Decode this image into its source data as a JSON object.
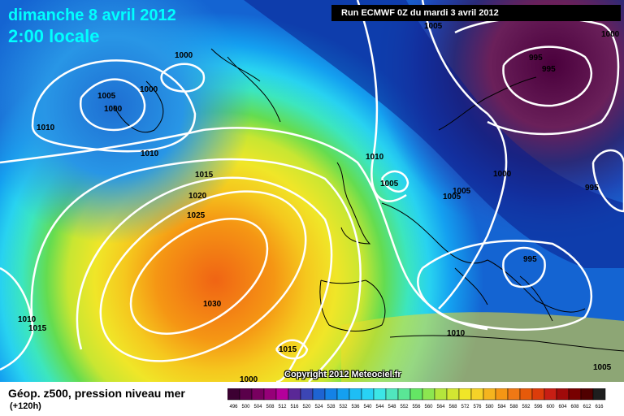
{
  "title": {
    "date": "dimanche 8 avril 2012",
    "time": "2:00 locale"
  },
  "run_info": "Run ECMWF 0Z du mardi 3 avril 2012",
  "copyright": "Copyright 2012 Meteociel.fr",
  "caption": "Géop. z500, pression niveau mer",
  "lead_time": "(+120h)",
  "isobar_labels": [
    "1000",
    "1005",
    "1000",
    "1005",
    "1000",
    "1010",
    "1010",
    "1015",
    "1020",
    "1025",
    "1030",
    "1010",
    "1015",
    "1015",
    "1010",
    "1005",
    "1005",
    "1000",
    "995",
    "995",
    "1000",
    "995",
    "1010",
    "1005",
    "1005",
    "995",
    "1000"
  ],
  "colors": {
    "deep_low": "#4a0040",
    "purple": "#6a2a6a",
    "dark_blue": "#0a1e8c",
    "blue": "#1464d2",
    "light_blue": "#28aaf0",
    "cyan": "#3cdcf0",
    "aqua_green": "#50e6b4",
    "green": "#64dc50",
    "yellow_green": "#c8e632",
    "yellow": "#f0e628",
    "orange": "#f5aa1e",
    "dark_orange": "#f07814",
    "title_text": "#00ffff"
  },
  "legend_scale": {
    "values": [
      "496",
      "500",
      "504",
      "508",
      "512",
      "516",
      "520",
      "524",
      "528",
      "532",
      "536",
      "540",
      "544",
      "548",
      "552",
      "556",
      "560",
      "564",
      "568",
      "572",
      "576",
      "580",
      "584",
      "588",
      "592",
      "596",
      "600",
      "604",
      "608",
      "612",
      "616"
    ],
    "colors": [
      "#3c0032",
      "#5a004a",
      "#78005f",
      "#960078",
      "#b4009b",
      "#5a2896",
      "#3c46b4",
      "#1e64d2",
      "#1482e6",
      "#14a0f0",
      "#1ebef5",
      "#28d2f5",
      "#3ce6e6",
      "#50e6be",
      "#5ae696",
      "#64e664",
      "#8ce650",
      "#b4e63c",
      "#d2e632",
      "#f0e628",
      "#f5d228",
      "#f5b41e",
      "#f59614",
      "#f07814",
      "#e65a0a",
      "#dc3c0a",
      "#c81e14",
      "#a00a0a",
      "#780000",
      "#500000",
      "#1e1e1e"
    ]
  }
}
